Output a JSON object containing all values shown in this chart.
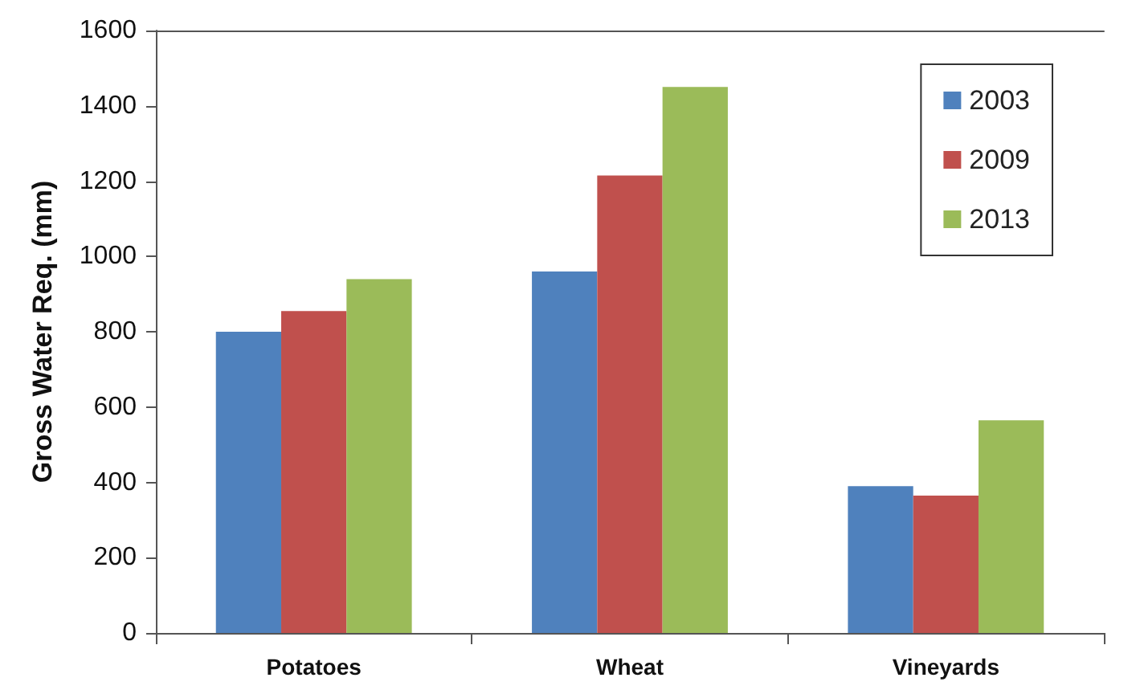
{
  "chart_data": {
    "type": "bar",
    "ylabel": "Gross Water Req. (mm)",
    "categories": [
      "Potatoes",
      "Wheat",
      "Vineyards"
    ],
    "series": [
      {
        "name": "2003",
        "color": "#4f81bd",
        "values": [
          800,
          960,
          390
        ]
      },
      {
        "name": "2009",
        "color": "#c0504d",
        "values": [
          855,
          1215,
          365
        ]
      },
      {
        "name": "2013",
        "color": "#9bbb59",
        "values": [
          940,
          1450,
          565
        ]
      }
    ],
    "ylim": [
      0,
      1600
    ],
    "yticks": [
      0,
      200,
      400,
      600,
      800,
      1000,
      1200,
      1400,
      1600
    ],
    "grid": false,
    "legend": "top right"
  }
}
